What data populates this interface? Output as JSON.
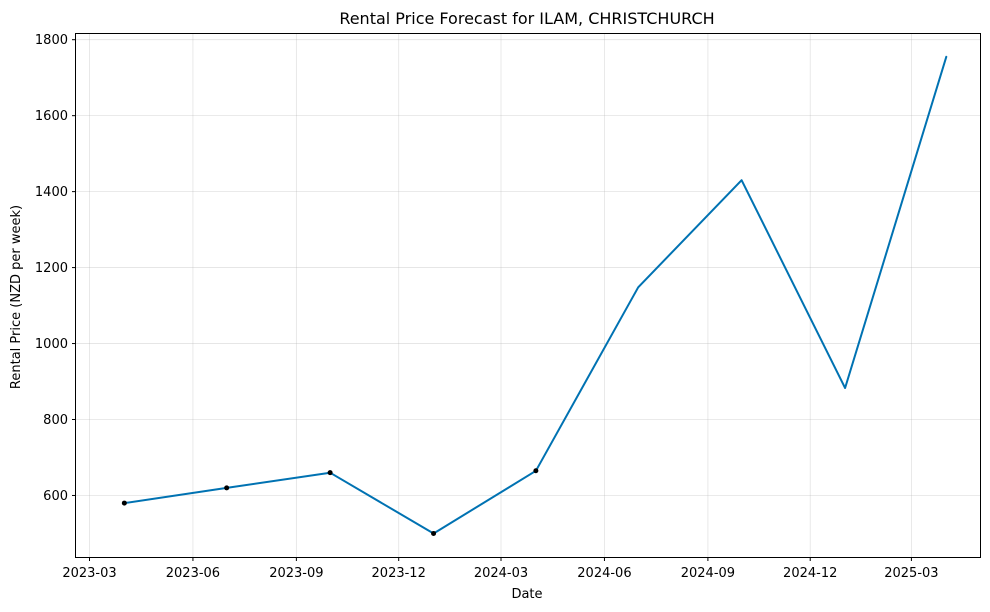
{
  "chart_data": {
    "type": "line",
    "title": "Rental Price Forecast for ILAM, CHRISTCHURCH",
    "xlabel": "Date",
    "ylabel": "Rental Price (NZD per week)",
    "x_ticks": [
      "2023-03",
      "2023-06",
      "2023-09",
      "2023-12",
      "2024-03",
      "2024-06",
      "2024-09",
      "2024-12",
      "2025-03"
    ],
    "y_ticks": [
      600,
      800,
      1000,
      1200,
      1400,
      1600,
      1800
    ],
    "xlim": [
      "2023-02-17",
      "2025-05-01"
    ],
    "ylim": [
      438,
      1815
    ],
    "grid": true,
    "line_color": "#0072B2",
    "marker_color": "#000000",
    "series": [
      {
        "points": [
          {
            "x": "2023-04-01",
            "y": 580
          },
          {
            "x": "2023-07-01",
            "y": 620
          },
          {
            "x": "2023-10-01",
            "y": 660
          },
          {
            "x": "2024-01-01",
            "y": 500
          },
          {
            "x": "2024-04-01",
            "y": 665
          },
          {
            "x": "2024-07-01",
            "y": 1148
          },
          {
            "x": "2024-10-01",
            "y": 1430
          },
          {
            "x": "2025-01-01",
            "y": 883
          },
          {
            "x": "2025-04-01",
            "y": 1755
          }
        ],
        "observed": [
          "2023-04-01",
          "2023-07-01",
          "2023-10-01",
          "2024-01-01",
          "2024-04-01"
        ]
      }
    ]
  }
}
